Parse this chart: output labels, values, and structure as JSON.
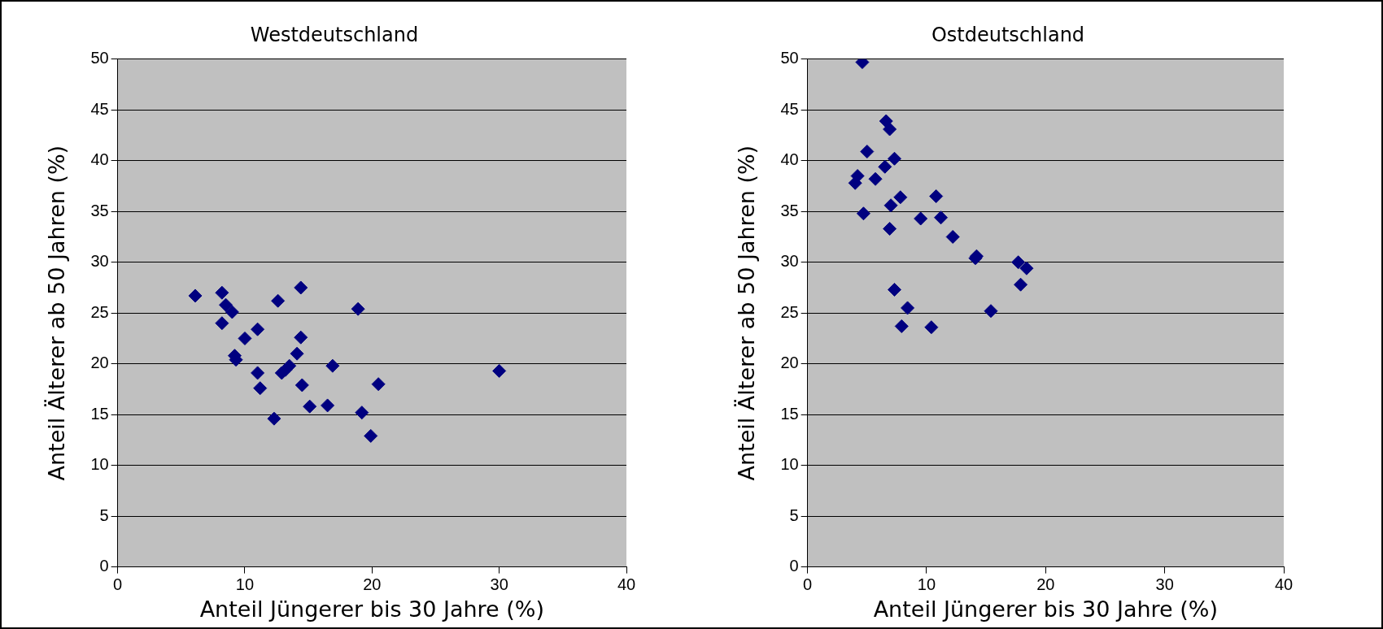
{
  "chart_data": [
    {
      "type": "scatter",
      "title": "Westdeutschland",
      "xlabel": "Anteil Jüngerer bis 30 Jahre (%)",
      "ylabel": "Anteil Älterer ab 50 Jahren (%)",
      "xlim": [
        0,
        40
      ],
      "ylim": [
        0,
        50
      ],
      "xticks": [
        0,
        10,
        20,
        30,
        40
      ],
      "yticks": [
        0,
        5,
        10,
        15,
        20,
        25,
        30,
        35,
        40,
        45,
        50
      ],
      "grid": "y",
      "marker": "diamond",
      "series": [
        {
          "color": "#000080",
          "x": [
            6.1,
            8.2,
            8.5,
            9.0,
            8.2,
            9.2,
            9.3,
            10.0,
            11.0,
            11.0,
            11.2,
            12.3,
            12.6,
            12.9,
            13.2,
            13.5,
            14.4,
            14.4,
            14.1,
            14.5,
            15.1,
            16.5,
            16.9,
            18.9,
            19.2,
            19.9,
            20.5,
            30.0
          ],
          "values": [
            26.7,
            27.0,
            25.8,
            25.1,
            24.0,
            20.8,
            20.4,
            22.5,
            23.4,
            19.1,
            17.6,
            14.6,
            26.2,
            19.1,
            19.4,
            19.8,
            27.5,
            22.6,
            21.0,
            17.9,
            15.8,
            15.9,
            19.8,
            25.4,
            15.2,
            12.9,
            18.0,
            19.3
          ]
        }
      ]
    },
    {
      "type": "scatter",
      "title": "Ostdeutschland",
      "xlabel": "Anteil Jüngerer bis 30 Jahre (%)",
      "ylabel": "Anteil Älterer ab 50 Jahren (%)",
      "xlim": [
        0,
        40
      ],
      "ylim": [
        0,
        50
      ],
      "xticks": [
        0,
        10,
        20,
        30,
        40
      ],
      "yticks": [
        0,
        5,
        10,
        15,
        20,
        25,
        30,
        35,
        40,
        45,
        50
      ],
      "grid": "y",
      "marker": "diamond",
      "series": [
        {
          "color": "#000080",
          "x": [
            4.6,
            6.6,
            6.9,
            5.0,
            7.3,
            6.5,
            4.2,
            4.0,
            5.7,
            7.8,
            7.0,
            10.8,
            4.7,
            9.5,
            11.2,
            6.9,
            12.2,
            14.2,
            14.1,
            17.7,
            18.4,
            17.9,
            7.3,
            8.4,
            7.9,
            10.4,
            15.4
          ],
          "values": [
            49.7,
            43.9,
            43.1,
            40.9,
            40.2,
            39.4,
            38.5,
            37.8,
            38.2,
            36.4,
            35.6,
            36.5,
            34.8,
            34.3,
            34.4,
            33.3,
            32.5,
            30.6,
            30.4,
            30.0,
            29.4,
            27.8,
            27.3,
            25.5,
            23.7,
            23.6,
            25.2
          ]
        }
      ]
    }
  ]
}
